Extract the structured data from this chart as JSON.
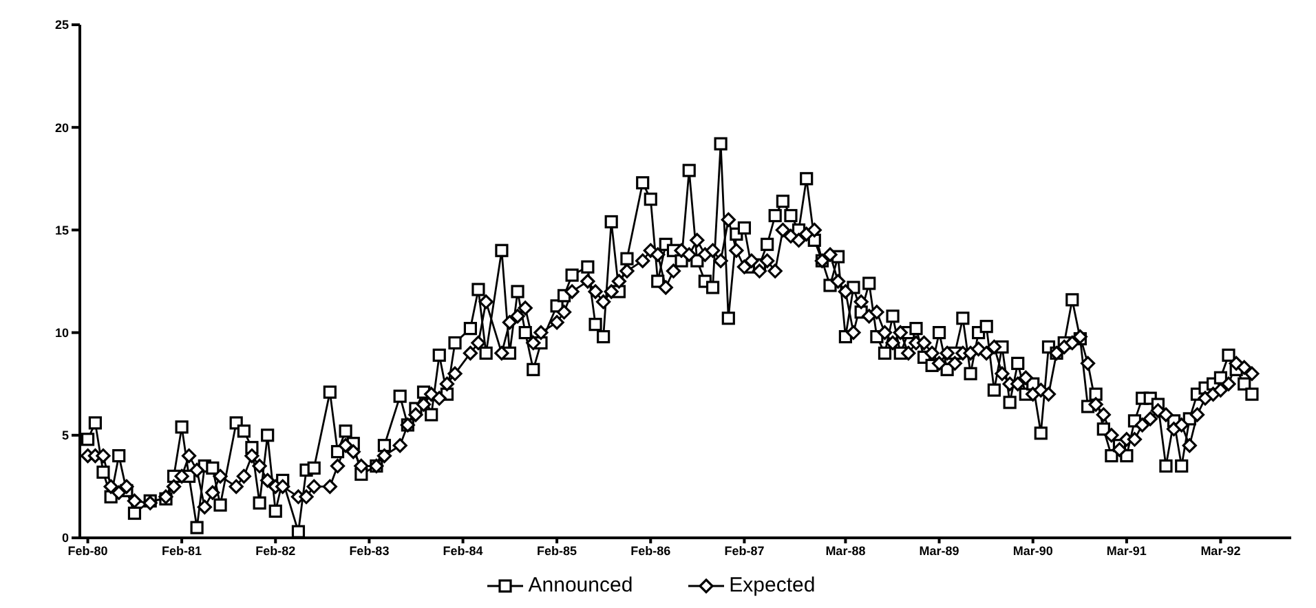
{
  "chart_data": {
    "type": "line",
    "x": [
      "1980-02",
      "1980-03",
      "1980-04",
      "1980-05",
      "1980-06",
      "1980-07",
      "1980-08",
      "1980-10",
      "1980-12",
      "1981-01",
      "1981-02",
      "1981-03",
      "1981-04",
      "1981-05",
      "1981-06",
      "1981-07",
      "1981-09",
      "1981-10",
      "1981-11",
      "1981-12",
      "1982-01",
      "1982-02",
      "1982-03",
      "1982-05",
      "1982-06",
      "1982-07",
      "1982-09",
      "1982-10",
      "1982-11",
      "1982-12",
      "1983-01",
      "1983-03",
      "1983-04",
      "1983-06",
      "1983-07",
      "1983-08",
      "1983-09",
      "1983-10",
      "1983-11",
      "1983-12",
      "1984-01",
      "1984-03",
      "1984-04",
      "1984-05",
      "1984-07",
      "1984-08",
      "1984-09",
      "1984-10",
      "1984-11",
      "1984-12",
      "1985-02",
      "1985-03",
      "1985-04",
      "1985-06",
      "1985-07",
      "1985-08",
      "1985-09",
      "1985-10",
      "1985-11",
      "1986-01",
      "1986-02",
      "1986-03",
      "1986-04",
      "1986-05",
      "1986-06",
      "1986-07",
      "1986-08",
      "1986-09",
      "1986-10",
      "1986-11",
      "1986-12",
      "1987-01",
      "1987-02",
      "1987-03",
      "1987-04",
      "1987-05",
      "1987-06",
      "1987-07",
      "1987-08",
      "1987-09",
      "1987-10",
      "1987-11",
      "1987-12",
      "1988-01",
      "1988-02",
      "1988-03",
      "1988-04",
      "1988-05",
      "1988-06",
      "1988-07",
      "1988-08",
      "1988-09",
      "1988-10",
      "1988-11",
      "1988-12",
      "1989-01",
      "1989-02",
      "1989-03",
      "1989-04",
      "1989-05",
      "1989-06",
      "1989-07",
      "1989-08",
      "1989-09",
      "1989-10",
      "1989-11",
      "1989-12",
      "1990-01",
      "1990-02",
      "1990-03",
      "1990-04",
      "1990-05",
      "1990-06",
      "1990-07",
      "1990-08",
      "1990-09",
      "1990-10",
      "1990-11",
      "1990-12",
      "1991-01",
      "1991-02",
      "1991-03",
      "1991-04",
      "1991-05",
      "1991-06",
      "1991-07",
      "1991-08",
      "1991-09",
      "1991-10",
      "1991-11",
      "1991-12",
      "1992-01",
      "1992-02",
      "1992-03",
      "1992-04",
      "1992-05",
      "1992-06",
      "1992-07"
    ],
    "series": [
      {
        "name": "Announced",
        "color": "#000000",
        "marker": "square",
        "values": [
          4.8,
          5.6,
          3.2,
          2.0,
          4.0,
          2.3,
          1.2,
          1.8,
          1.9,
          3.0,
          5.4,
          3.0,
          0.5,
          3.5,
          3.4,
          1.6,
          5.6,
          5.2,
          4.4,
          1.7,
          5.0,
          1.3,
          2.8,
          0.3,
          3.3,
          3.4,
          7.1,
          4.2,
          5.2,
          4.6,
          3.1,
          3.5,
          4.5,
          6.9,
          5.5,
          6.3,
          7.1,
          6.0,
          8.9,
          7.0,
          9.5,
          10.2,
          12.1,
          9.0,
          14.0,
          9.0,
          12.0,
          10.0,
          8.2,
          9.5,
          11.3,
          11.8,
          12.8,
          13.2,
          10.4,
          9.8,
          15.4,
          12.0,
          13.6,
          17.3,
          16.5,
          12.5,
          14.3,
          14.0,
          13.5,
          17.9,
          13.5,
          12.5,
          12.2,
          19.2,
          10.7,
          14.8,
          15.1,
          13.2,
          13.3,
          14.3,
          15.7,
          16.4,
          15.7,
          15.0,
          17.5,
          14.5,
          13.5,
          12.3,
          13.7,
          9.8,
          12.2,
          11.0,
          12.4,
          9.8,
          9.0,
          10.8,
          9.0,
          10.0,
          10.2,
          8.8,
          8.4,
          10.0,
          8.2,
          9.0,
          10.7,
          8.0,
          10.0,
          10.3,
          7.2,
          9.3,
          6.6,
          8.5,
          7.0,
          7.5,
          5.1,
          9.3,
          9.0,
          9.5,
          11.6,
          9.7,
          6.4,
          7.0,
          5.3,
          4.0,
          4.5,
          4.0,
          5.7,
          6.8,
          6.8,
          6.5,
          3.5,
          5.7,
          3.5,
          5.8,
          7.0,
          7.3,
          7.5,
          7.8,
          8.9,
          8.2,
          7.5,
          7.0
        ]
      },
      {
        "name": "Expected",
        "color": "#000000",
        "marker": "diamond",
        "values": [
          4.0,
          4.0,
          4.0,
          2.5,
          2.2,
          2.5,
          1.8,
          1.7,
          2.0,
          2.5,
          3.0,
          4.0,
          3.3,
          1.5,
          2.2,
          3.0,
          2.5,
          3.0,
          4.0,
          3.5,
          2.8,
          2.5,
          2.5,
          2.0,
          2.0,
          2.5,
          2.5,
          3.5,
          4.5,
          4.2,
          3.5,
          3.5,
          4.0,
          4.5,
          5.5,
          6.0,
          6.5,
          7.0,
          6.8,
          7.5,
          8.0,
          9.0,
          9.5,
          11.5,
          9.0,
          10.5,
          10.8,
          11.2,
          9.5,
          10.0,
          10.5,
          11.0,
          12.0,
          12.5,
          12.0,
          11.5,
          12.0,
          12.5,
          13.0,
          13.5,
          14.0,
          13.8,
          12.2,
          13.0,
          14.0,
          13.8,
          14.5,
          13.8,
          14.0,
          13.5,
          15.5,
          14.0,
          13.2,
          13.5,
          13.0,
          13.5,
          13.0,
          15.0,
          14.7,
          14.5,
          14.8,
          15.0,
          13.5,
          13.8,
          12.5,
          12.0,
          10.0,
          11.5,
          10.8,
          11.0,
          10.0,
          9.5,
          10.0,
          9.0,
          9.5,
          9.5,
          9.0,
          8.5,
          9.0,
          8.5,
          9.0,
          9.0,
          9.2,
          9.0,
          9.3,
          8.0,
          7.5,
          7.5,
          7.8,
          7.0,
          7.2,
          7.0,
          9.0,
          9.3,
          9.5,
          9.8,
          8.5,
          6.5,
          6.0,
          5.0,
          4.3,
          4.8,
          4.8,
          5.5,
          5.8,
          6.2,
          6.0,
          5.3,
          5.5,
          4.5,
          6.0,
          6.8,
          7.0,
          7.2,
          7.5,
          8.5,
          8.3,
          8.0
        ]
      }
    ],
    "xlim": [
      "1980-01",
      "1992-12"
    ],
    "xticks": [
      {
        "value": "1980-02",
        "label": "Feb-80"
      },
      {
        "value": "1981-02",
        "label": "Feb-81"
      },
      {
        "value": "1982-02",
        "label": "Feb-82"
      },
      {
        "value": "1983-02",
        "label": "Feb-83"
      },
      {
        "value": "1984-02",
        "label": "Feb-84"
      },
      {
        "value": "1985-02",
        "label": "Feb-85"
      },
      {
        "value": "1986-02",
        "label": "Feb-86"
      },
      {
        "value": "1987-02",
        "label": "Feb-87"
      },
      {
        "value": "1988-03",
        "label": "Mar-88"
      },
      {
        "value": "1989-03",
        "label": "Mar-89"
      },
      {
        "value": "1990-03",
        "label": "Mar-90"
      },
      {
        "value": "1991-03",
        "label": "Mar-91"
      },
      {
        "value": "1992-03",
        "label": "Mar-92"
      }
    ],
    "ylim": [
      0,
      25
    ],
    "yticks": [
      0,
      5,
      10,
      15,
      20,
      25
    ],
    "grid": false,
    "legend": "bottom",
    "line_style": "solid"
  }
}
